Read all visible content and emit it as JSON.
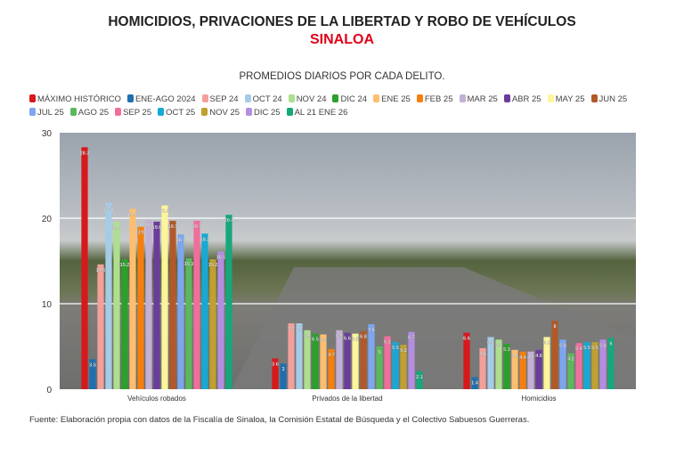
{
  "chart_data": {
    "type": "bar",
    "title": "HOMICIDIOS, PRIVACIONES DE LA LIBERTAD Y ROBO DE VEHÍCULOS",
    "subtitle": "SINALOA",
    "subtitle2": "PROMEDIOS DIARIOS POR CADA DELITO.",
    "source": "Fuente: Elaboración propia con datos de la Fiscalía de Sinaloa, la Comisión Estatal de Búsqueda y el Colectivo Sabuesos Guerreras.",
    "ylim": [
      0,
      30
    ],
    "yticks": [
      "0",
      "10",
      "20",
      "30"
    ],
    "categories": [
      "Vehículos robados",
      "Privados de la libertad",
      "Homicidios"
    ],
    "legend_placement": "top",
    "series": [
      {
        "name": "MÁXIMO HISTÓRICO",
        "color": "#d7191c",
        "values": [
          28.3,
          3.6,
          6.6
        ]
      },
      {
        "name": "ENE-AGO 2024",
        "color": "#1f6fb0",
        "values": [
          3.5,
          3.0,
          1.4
        ]
      },
      {
        "name": "SEP 24",
        "color": "#f4a09a",
        "values": [
          14.6,
          7.7,
          4.8
        ]
      },
      {
        "name": "OCT 24",
        "color": "#a6cbe6",
        "values": [
          21.8,
          7.7,
          6.1
        ]
      },
      {
        "name": "NOV 24",
        "color": "#addf8f",
        "values": [
          19.6,
          6.9,
          5.8
        ]
      },
      {
        "name": "DIC 24",
        "color": "#2ca02c",
        "values": [
          15.2,
          6.5,
          5.3
        ]
      },
      {
        "name": "ENE 25",
        "color": "#fdbf6f",
        "values": [
          21.1,
          6.4,
          4.6
        ]
      },
      {
        "name": "FEB 25",
        "color": "#f57f0e",
        "values": [
          19.0,
          4.7,
          4.4
        ]
      },
      {
        "name": "MAR 25",
        "color": "#c5b0d5",
        "values": [
          19.8,
          6.9,
          4.4
        ]
      },
      {
        "name": "ABR 25",
        "color": "#6a3d9a",
        "values": [
          19.6,
          6.6,
          4.6
        ]
      },
      {
        "name": "MAY 25",
        "color": "#fdf59a",
        "values": [
          21.5,
          6.5,
          6.1
        ]
      },
      {
        "name": "JUN 25",
        "color": "#b15928",
        "values": [
          19.7,
          6.8,
          8.0
        ]
      },
      {
        "name": "JUL 25",
        "color": "#7ea6ef",
        "values": [
          18.1,
          7.6,
          5.8
        ]
      },
      {
        "name": "AGO 25",
        "color": "#5cb85c",
        "values": [
          15.3,
          5.0,
          4.2
        ]
      },
      {
        "name": "SEP 25",
        "color": "#ef6f9c",
        "values": [
          19.7,
          6.2,
          5.4
        ]
      },
      {
        "name": "OCT 25",
        "color": "#17a9d4",
        "values": [
          18.2,
          5.5,
          5.5
        ]
      },
      {
        "name": "NOV 25",
        "color": "#c0a030",
        "values": [
          15.2,
          5.2,
          5.5
        ]
      },
      {
        "name": "DIC 25",
        "color": "#b38ee0",
        "values": [
          16.1,
          6.7,
          5.8
        ]
      },
      {
        "name": "AL 21 ENE 26",
        "color": "#16a77d",
        "values": [
          20.4,
          2.1,
          6.0
        ]
      }
    ]
  }
}
